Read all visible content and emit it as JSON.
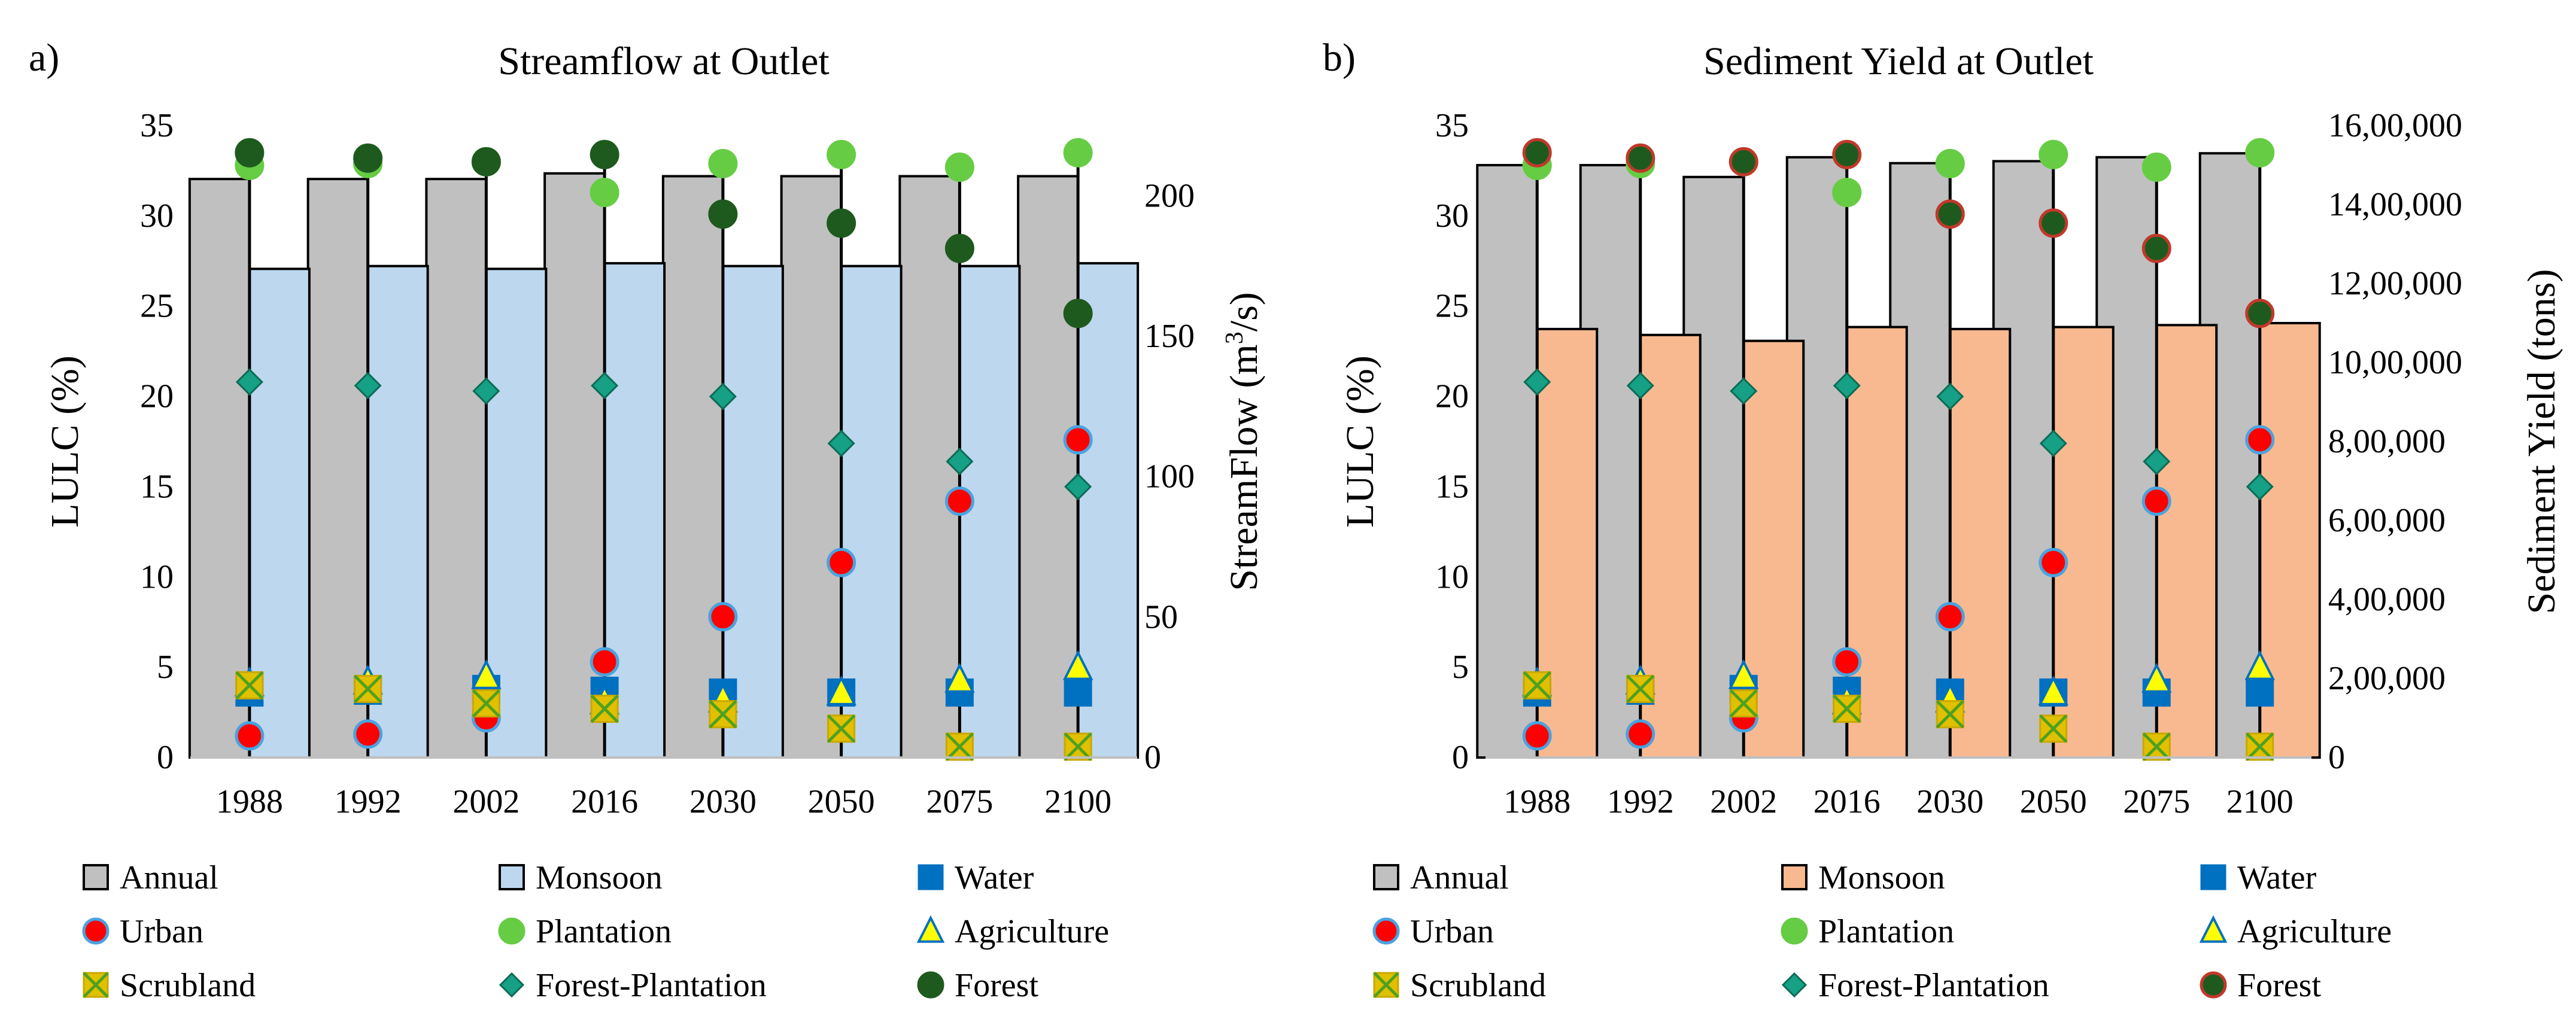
{
  "chart_data": [
    {
      "panel_label": "a)",
      "type": "bar",
      "title": "Streamflow at Outlet",
      "ylabel": "LULC (%)",
      "y2label_main": "StreamFlow (m",
      "y2label_sup": "3",
      "y2label_tail": "/s)",
      "ylim": [
        0,
        35
      ],
      "yticks": [
        "0",
        "5",
        "10",
        "15",
        "20",
        "25",
        "30",
        "35"
      ],
      "y2lim": [
        0,
        225
      ],
      "y2ticks": [
        "0",
        "50",
        "100",
        "150",
        "200"
      ],
      "categories": [
        "1988",
        "1992",
        "2002",
        "2016",
        "2030",
        "2050",
        "2075",
        "2100"
      ],
      "bar_series": [
        {
          "name": "Annual",
          "color": "#c0c0c0",
          "values": [
            206,
            206,
            206,
            208,
            207,
            207,
            207,
            207
          ]
        },
        {
          "name": "Monsoon",
          "color": "#bdd7ee",
          "values": [
            174,
            175,
            174,
            176,
            175,
            175,
            175,
            176
          ]
        }
      ],
      "point_series": [
        {
          "name": "Water",
          "marker": "square",
          "fill": "#0070c0",
          "stroke": "#0070c0",
          "values": [
            3.6,
            3.7,
            3.8,
            3.7,
            3.6,
            3.6,
            3.6,
            3.6
          ]
        },
        {
          "name": "Urban",
          "marker": "circle",
          "fill": "#ff0000",
          "stroke": "#4aa3df",
          "values": [
            1.2,
            1.3,
            2.2,
            5.3,
            7.8,
            10.8,
            14.2,
            17.6
          ]
        },
        {
          "name": "Plantation",
          "marker": "circle",
          "fill": "#66cc44",
          "stroke": "#66cc44",
          "values": [
            32.8,
            32.9,
            33.0,
            31.3,
            32.9,
            33.4,
            32.7,
            33.5
          ]
        },
        {
          "name": "Agriculture",
          "marker": "triangle",
          "fill": "#ffff00",
          "stroke": "#0070c0",
          "values": [
            4.1,
            4.2,
            4.5,
            3.1,
            3.2,
            3.6,
            4.3,
            5.0
          ]
        },
        {
          "name": "Scrubland",
          "marker": "xsquare",
          "fill": "#e0c000",
          "stroke": "#4fa020",
          "values": [
            4.0,
            3.8,
            3.0,
            2.7,
            2.4,
            1.6,
            0.6,
            0.6
          ]
        },
        {
          "name": "Forest-Plantation",
          "marker": "diamond",
          "fill": "#16a085",
          "stroke": "#0d6b55",
          "values": [
            20.8,
            20.6,
            20.3,
            20.6,
            20.0,
            17.4,
            16.4,
            15.0
          ]
        },
        {
          "name": "Forest",
          "marker": "circle",
          "fill": "#1e5a1e",
          "stroke": "#1e5a1e",
          "values": [
            33.5,
            33.2,
            33.0,
            33.4,
            30.1,
            29.6,
            28.2,
            24.6
          ]
        }
      ]
    },
    {
      "panel_label": "b)",
      "type": "bar",
      "title": "Sediment Yield at Outlet",
      "ylabel": "LULC (%)",
      "y2label_main": "Sediment Yield (tons)",
      "y2label_sup": "",
      "y2label_tail": "",
      "ylim": [
        0,
        35
      ],
      "yticks": [
        "0",
        "5",
        "10",
        "15",
        "20",
        "25",
        "30",
        "35"
      ],
      "y2lim": [
        0,
        1600000
      ],
      "y2ticks": [
        "0",
        "2,00,000",
        "4,00,000",
        "6,00,000",
        "8,00,000",
        "10,00,000",
        "12,00,000",
        "14,00,000",
        "16,00,000"
      ],
      "categories": [
        "1988",
        "1992",
        "2002",
        "2016",
        "2030",
        "2050",
        "2075",
        "2100"
      ],
      "bar_series": [
        {
          "name": "Annual",
          "color": "#c0c0c0",
          "values": [
            1500000,
            1500000,
            1470000,
            1520000,
            1505000,
            1510000,
            1520000,
            1530000
          ]
        },
        {
          "name": "Monsoon",
          "color": "#f8b990",
          "values": [
            1085000,
            1070000,
            1055000,
            1090000,
            1085000,
            1090000,
            1095000,
            1100000
          ]
        }
      ],
      "point_series": [
        {
          "name": "Water",
          "marker": "square",
          "fill": "#0070c0",
          "stroke": "#0070c0",
          "values": [
            3.6,
            3.7,
            3.8,
            3.7,
            3.6,
            3.6,
            3.6,
            3.6
          ]
        },
        {
          "name": "Urban",
          "marker": "circle",
          "fill": "#ff0000",
          "stroke": "#4aa3df",
          "values": [
            1.2,
            1.3,
            2.2,
            5.3,
            7.8,
            10.8,
            14.2,
            17.6
          ]
        },
        {
          "name": "Plantation",
          "marker": "circle",
          "fill": "#66cc44",
          "stroke": "#66cc44",
          "values": [
            32.8,
            32.9,
            33.0,
            31.3,
            32.9,
            33.4,
            32.7,
            33.5
          ]
        },
        {
          "name": "Agriculture",
          "marker": "triangle",
          "fill": "#ffff00",
          "stroke": "#0070c0",
          "values": [
            4.1,
            4.2,
            4.5,
            3.1,
            3.2,
            3.6,
            4.3,
            5.0
          ]
        },
        {
          "name": "Scrubland",
          "marker": "xsquare",
          "fill": "#e0c000",
          "stroke": "#4fa020",
          "values": [
            4.0,
            3.8,
            3.0,
            2.7,
            2.4,
            1.6,
            0.6,
            0.6
          ]
        },
        {
          "name": "Forest-Plantation",
          "marker": "diamond",
          "fill": "#16a085",
          "stroke": "#0d6b55",
          "values": [
            20.8,
            20.6,
            20.3,
            20.6,
            20.0,
            17.4,
            16.4,
            15.0
          ]
        },
        {
          "name": "Forest",
          "marker": "circle",
          "fill": "#1e5a1e",
          "stroke": "#c0392b",
          "values": [
            33.5,
            33.2,
            33.0,
            33.4,
            30.1,
            29.6,
            28.2,
            24.6
          ]
        }
      ]
    }
  ]
}
